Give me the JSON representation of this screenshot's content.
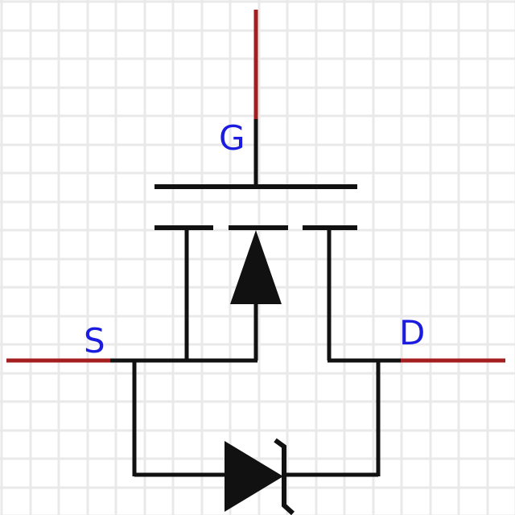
{
  "diagram": {
    "pins": {
      "gate": {
        "label": "G"
      },
      "source": {
        "label": "S"
      },
      "drain": {
        "label": "D"
      }
    },
    "colors": {
      "background": "#ffffff",
      "grid": "#e9e9e9",
      "wire": "#111111",
      "lead": "#a31f1f",
      "label": "#1c1ce0"
    }
  }
}
